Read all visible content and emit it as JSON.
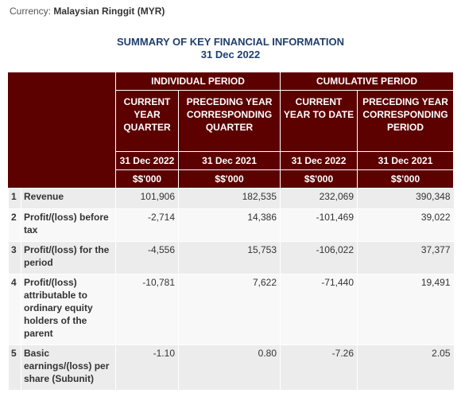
{
  "currency": {
    "label": "Currency:",
    "value": "Malaysian Ringgit (MYR)"
  },
  "title": {
    "line1": "SUMMARY OF KEY FINANCIAL INFORMATION",
    "line2": "31 Dec 2022"
  },
  "header": {
    "individual_period": "INDIVIDUAL PERIOD",
    "cumulative_period": "CUMULATIVE PERIOD",
    "columns": [
      {
        "heading": "CURRENT YEAR QUARTER",
        "date": "31 Dec 2022",
        "unit": "$$'000"
      },
      {
        "heading": "PRECEDING YEAR CORRESPONDING QUARTER",
        "date": "31 Dec 2021",
        "unit": "$$'000"
      },
      {
        "heading": "CURRENT YEAR TO DATE",
        "date": "31 Dec 2022",
        "unit": "$$'000"
      },
      {
        "heading": "PRECEDING YEAR CORRESPONDING PERIOD",
        "date": "31 Dec 2021",
        "unit": "$$'000"
      }
    ]
  },
  "rows": [
    {
      "no": "1",
      "item": "Revenue",
      "values": [
        "101,906",
        "182,535",
        "232,069",
        "390,348"
      ]
    },
    {
      "no": "2",
      "item": "Profit/(loss) before tax",
      "values": [
        "-2,714",
        "14,386",
        "-101,469",
        "39,022"
      ]
    },
    {
      "no": "3",
      "item": "Profit/(loss) for the period",
      "values": [
        "-4,556",
        "15,753",
        "-106,022",
        "37,377"
      ]
    },
    {
      "no": "4",
      "item": "Profit/(loss) attributable to ordinary equity holders of the parent",
      "values": [
        "-10,781",
        "7,622",
        "-71,440",
        "19,491"
      ]
    },
    {
      "no": "5",
      "item": "Basic earnings/(loss) per share (Subunit)",
      "values": [
        "-1.10",
        "0.80",
        "-7.26",
        "2.05"
      ]
    }
  ]
}
